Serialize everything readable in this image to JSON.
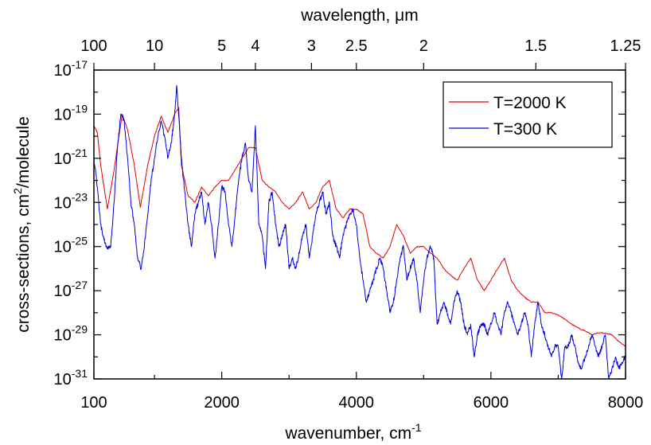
{
  "chart_data": {
    "type": "line",
    "xlabel": "wavenumber, cm",
    "xlabel_sup": "-1",
    "top_xlabel": "wavelength, μm",
    "ylabel": "cross-sections, cm",
    "ylabel_sup": "2",
    "ylabel_tail": "/molecule",
    "x_scale": "linear",
    "xlim": [
      100,
      8000
    ],
    "y_scale": "log",
    "ylim": [
      1e-31,
      1e-17
    ],
    "x_ticks": [
      {
        "value": 100,
        "label": "100"
      },
      {
        "value": 2000,
        "label": "2000"
      },
      {
        "value": 4000,
        "label": "4000"
      },
      {
        "value": 6000,
        "label": "6000"
      },
      {
        "value": 8000,
        "label": "8000"
      }
    ],
    "y_ticks": [
      {
        "value": 1e-31,
        "base": "10",
        "exp": "-31"
      },
      {
        "value": 1e-29,
        "base": "10",
        "exp": "-29"
      },
      {
        "value": 1e-27,
        "base": "10",
        "exp": "-27"
      },
      {
        "value": 1e-25,
        "base": "10",
        "exp": "-25"
      },
      {
        "value": 1e-23,
        "base": "10",
        "exp": "-23"
      },
      {
        "value": 1e-21,
        "base": "10",
        "exp": "-21"
      },
      {
        "value": 1e-19,
        "base": "10",
        "exp": "-19"
      },
      {
        "value": 1e-17,
        "base": "10",
        "exp": "-17"
      }
    ],
    "top_ticks": [
      {
        "wavenumber": 100,
        "label": "100"
      },
      {
        "wavenumber": 1000,
        "label": "10"
      },
      {
        "wavenumber": 2000,
        "label": "5"
      },
      {
        "wavenumber": 2500,
        "label": "4"
      },
      {
        "wavenumber": 3333,
        "label": "3"
      },
      {
        "wavenumber": 4000,
        "label": "2.5"
      },
      {
        "wavenumber": 5000,
        "label": "2"
      },
      {
        "wavenumber": 6667,
        "label": "1.5"
      },
      {
        "wavenumber": 8000,
        "label": "1.25"
      }
    ],
    "legend": {
      "position": "top-right"
    },
    "series": [
      {
        "name": "T=2000 K",
        "color": "#e00000",
        "points": [
          [
            100,
            3e-20
          ],
          [
            150,
            1.5e-20
          ],
          [
            200,
            5e-22
          ],
          [
            300,
            5e-24
          ],
          [
            400,
            3e-22
          ],
          [
            520,
            1e-19
          ],
          [
            600,
            2e-20
          ],
          [
            700,
            5e-22
          ],
          [
            790,
            6e-24
          ],
          [
            900,
            5e-22
          ],
          [
            1000,
            1e-20
          ],
          [
            1100,
            8e-20
          ],
          [
            1200,
            1.5e-20
          ],
          [
            1300,
            1e-19
          ],
          [
            1360,
            2e-19
          ],
          [
            1400,
            5e-22
          ],
          [
            1500,
            2e-23
          ],
          [
            1600,
            1e-23
          ],
          [
            1700,
            5e-23
          ],
          [
            1800,
            2e-23
          ],
          [
            1900,
            5e-23
          ],
          [
            2000,
            1e-22
          ],
          [
            2100,
            1e-22
          ],
          [
            2200,
            3e-22
          ],
          [
            2300,
            1e-21
          ],
          [
            2400,
            3e-21
          ],
          [
            2500,
            3e-21
          ],
          [
            2600,
            1e-22
          ],
          [
            2700,
            5e-23
          ],
          [
            2800,
            3e-23
          ],
          [
            2900,
            1e-23
          ],
          [
            3000,
            5e-24
          ],
          [
            3100,
            1e-23
          ],
          [
            3200,
            3e-23
          ],
          [
            3300,
            5e-24
          ],
          [
            3400,
            1e-23
          ],
          [
            3500,
            5e-23
          ],
          [
            3600,
            1e-22
          ],
          [
            3700,
            5e-24
          ],
          [
            3800,
            2e-24
          ],
          [
            3900,
            5e-24
          ],
          [
            4000,
            5e-24
          ],
          [
            4100,
            3e-24
          ],
          [
            4200,
            1e-25
          ],
          [
            4300,
            5e-26
          ],
          [
            4400,
            3e-26
          ],
          [
            4500,
            1e-25
          ],
          [
            4600,
            1e-24
          ],
          [
            4700,
            3e-25
          ],
          [
            4800,
            5e-26
          ],
          [
            4900,
            1e-25
          ],
          [
            5000,
            1e-25
          ],
          [
            5100,
            5e-26
          ],
          [
            5200,
            3e-26
          ],
          [
            5300,
            1e-26
          ],
          [
            5400,
            5e-27
          ],
          [
            5500,
            3e-27
          ],
          [
            5600,
            1e-26
          ],
          [
            5700,
            3e-26
          ],
          [
            5800,
            3e-27
          ],
          [
            5900,
            1e-27
          ],
          [
            6000,
            3e-27
          ],
          [
            6100,
            1e-26
          ],
          [
            6200,
            3e-26
          ],
          [
            6300,
            3e-27
          ],
          [
            6400,
            1e-27
          ],
          [
            6500,
            5e-28
          ],
          [
            6600,
            3e-28
          ],
          [
            6700,
            3e-28
          ],
          [
            6800,
            1e-28
          ],
          [
            6900,
            1e-28
          ],
          [
            7000,
            8e-29
          ],
          [
            7100,
            5e-29
          ],
          [
            7200,
            3e-29
          ],
          [
            7300,
            2e-29
          ],
          [
            7400,
            1.5e-29
          ],
          [
            7500,
            1e-29
          ],
          [
            7600,
            1.2e-29
          ],
          [
            7700,
            1.2e-29
          ],
          [
            7800,
            1e-29
          ],
          [
            7900,
            5e-30
          ],
          [
            8000,
            3e-30
          ]
        ]
      },
      {
        "name": "T=300 K",
        "color": "#0000e0",
        "points": [
          [
            100,
            1e-21
          ],
          [
            150,
            5e-23
          ],
          [
            200,
            1e-24
          ],
          [
            250,
            2e-25
          ],
          [
            300,
            8e-26
          ],
          [
            350,
            1e-25
          ],
          [
            400,
            1e-23
          ],
          [
            450,
            3e-21
          ],
          [
            500,
            1e-19
          ],
          [
            550,
            5e-20
          ],
          [
            600,
            1e-21
          ],
          [
            650,
            1e-23
          ],
          [
            700,
            1e-24
          ],
          [
            750,
            3e-26
          ],
          [
            800,
            1e-26
          ],
          [
            850,
            1e-25
          ],
          [
            900,
            3e-24
          ],
          [
            950,
            1e-22
          ],
          [
            1000,
            1e-21
          ],
          [
            1050,
            1e-20
          ],
          [
            1100,
            5e-20
          ],
          [
            1150,
            1e-20
          ],
          [
            1200,
            1e-21
          ],
          [
            1250,
            5e-21
          ],
          [
            1300,
            1e-19
          ],
          [
            1330,
            2e-18
          ],
          [
            1380,
            1e-20
          ],
          [
            1400,
            1e-21
          ],
          [
            1450,
            3e-23
          ],
          [
            1500,
            1e-24
          ],
          [
            1550,
            1e-25
          ],
          [
            1600,
            3e-24
          ],
          [
            1650,
            1e-23
          ],
          [
            1700,
            3e-23
          ],
          [
            1750,
            1e-24
          ],
          [
            1800,
            1e-23
          ],
          [
            1850,
            1e-24
          ],
          [
            1900,
            3e-26
          ],
          [
            1950,
            1e-24
          ],
          [
            2000,
            5e-23
          ],
          [
            2050,
            3e-23
          ],
          [
            2100,
            1e-24
          ],
          [
            2150,
            1e-25
          ],
          [
            2200,
            3e-24
          ],
          [
            2250,
            1e-22
          ],
          [
            2300,
            1e-21
          ],
          [
            2350,
            5e-21
          ],
          [
            2400,
            1e-22
          ],
          [
            2450,
            3e-23
          ],
          [
            2500,
            3e-20
          ],
          [
            2550,
            1e-24
          ],
          [
            2600,
            3e-25
          ],
          [
            2650,
            1e-26
          ],
          [
            2700,
            1e-23
          ],
          [
            2750,
            3e-23
          ],
          [
            2800,
            1e-24
          ],
          [
            2850,
            1e-25
          ],
          [
            2900,
            3e-25
          ],
          [
            2950,
            1e-24
          ],
          [
            3000,
            1e-26
          ],
          [
            3050,
            3e-26
          ],
          [
            3100,
            1e-26
          ],
          [
            3150,
            5e-26
          ],
          [
            3200,
            3e-25
          ],
          [
            3250,
            1e-24
          ],
          [
            3300,
            3e-26
          ],
          [
            3350,
            3e-25
          ],
          [
            3400,
            3e-24
          ],
          [
            3450,
            1e-23
          ],
          [
            3500,
            3e-23
          ],
          [
            3550,
            3e-24
          ],
          [
            3600,
            1e-23
          ],
          [
            3650,
            3e-25
          ],
          [
            3700,
            1e-25
          ],
          [
            3750,
            3e-26
          ],
          [
            3800,
            3e-25
          ],
          [
            3850,
            1e-24
          ],
          [
            3900,
            3e-24
          ],
          [
            3950,
            5e-24
          ],
          [
            4000,
            1e-24
          ],
          [
            4050,
            3e-26
          ],
          [
            4100,
            3e-27
          ],
          [
            4150,
            3e-28
          ],
          [
            4200,
            1e-27
          ],
          [
            4250,
            3e-27
          ],
          [
            4300,
            1e-26
          ],
          [
            4350,
            3e-26
          ],
          [
            4400,
            1e-26
          ],
          [
            4450,
            1e-27
          ],
          [
            4500,
            1e-28
          ],
          [
            4550,
            3e-28
          ],
          [
            4600,
            3e-27
          ],
          [
            4650,
            3e-26
          ],
          [
            4700,
            1e-25
          ],
          [
            4750,
            3e-27
          ],
          [
            4800,
            1e-26
          ],
          [
            4850,
            3e-26
          ],
          [
            4900,
            3e-27
          ],
          [
            4950,
            1e-28
          ],
          [
            5000,
            3e-27
          ],
          [
            5050,
            3e-26
          ],
          [
            5100,
            1e-25
          ],
          [
            5150,
            3e-26
          ],
          [
            5200,
            3e-29
          ],
          [
            5250,
            1e-28
          ],
          [
            5300,
            3e-28
          ],
          [
            5350,
            1e-28
          ],
          [
            5400,
            3e-29
          ],
          [
            5450,
            3e-28
          ],
          [
            5500,
            1e-27
          ],
          [
            5550,
            3e-28
          ],
          [
            5600,
            3e-29
          ],
          [
            5650,
            1e-29
          ],
          [
            5700,
            3e-29
          ],
          [
            5750,
            1e-30
          ],
          [
            5800,
            1e-29
          ],
          [
            5850,
            3e-29
          ],
          [
            5900,
            3e-29
          ],
          [
            5950,
            1e-29
          ],
          [
            6000,
            3e-29
          ],
          [
            6050,
            1e-28
          ],
          [
            6100,
            3e-29
          ],
          [
            6150,
            1e-29
          ],
          [
            6200,
            1e-28
          ],
          [
            6250,
            3e-28
          ],
          [
            6300,
            1e-28
          ],
          [
            6350,
            3e-29
          ],
          [
            6400,
            1e-29
          ],
          [
            6450,
            3e-29
          ],
          [
            6500,
            1e-28
          ],
          [
            6550,
            3e-29
          ],
          [
            6600,
            1e-30
          ],
          [
            6650,
            3e-29
          ],
          [
            6700,
            3e-28
          ],
          [
            6750,
            3e-29
          ],
          [
            6800,
            1e-29
          ],
          [
            6850,
            3e-30
          ],
          [
            6900,
            1e-30
          ],
          [
            6950,
            3e-30
          ],
          [
            7000,
            3e-30
          ],
          [
            7050,
            1e-31
          ],
          [
            7100,
            3e-30
          ],
          [
            7150,
            3e-30
          ],
          [
            7200,
            1e-29
          ],
          [
            7250,
            3e-30
          ],
          [
            7300,
            5e-31
          ],
          [
            7350,
            3e-31
          ],
          [
            7400,
            1e-30
          ],
          [
            7450,
            3e-30
          ],
          [
            7500,
            1e-29
          ],
          [
            7550,
            3e-30
          ],
          [
            7600,
            1e-30
          ],
          [
            7650,
            3e-30
          ],
          [
            7700,
            1e-29
          ],
          [
            7750,
            1e-31
          ],
          [
            7800,
            3e-31
          ],
          [
            7850,
            1e-30
          ],
          [
            7900,
            3e-31
          ],
          [
            7950,
            5e-31
          ],
          [
            8000,
            1e-30
          ]
        ]
      }
    ]
  }
}
